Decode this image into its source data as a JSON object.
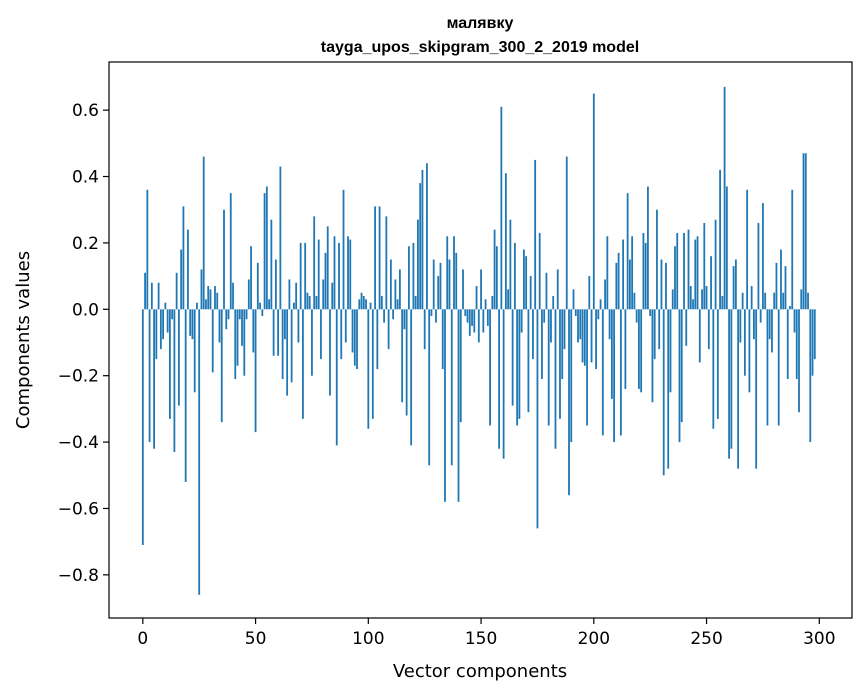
{
  "chart_data": {
    "type": "bar",
    "title": "малявку",
    "subtitle": "tayga_upos_skipgram_300_2_2019 model",
    "xlabel": "Vector components",
    "ylabel": "Components values",
    "xlim": [
      -15,
      314.5
    ],
    "ylim": [
      -0.93,
      0.745
    ],
    "x_ticks": [
      0,
      50,
      100,
      150,
      200,
      250,
      300
    ],
    "x_tick_labels": [
      "0",
      "50",
      "100",
      "150",
      "200",
      "250",
      "300"
    ],
    "y_ticks": [
      -0.8,
      -0.6,
      -0.4,
      -0.2,
      0.0,
      0.2,
      0.4,
      0.6
    ],
    "y_tick_labels": [
      "−0.8",
      "−0.6",
      "−0.4",
      "−0.2",
      "0.0",
      "0.2",
      "0.4",
      "0.6"
    ],
    "grid": false,
    "bar_color": "#1f77b4",
    "values": [
      -0.71,
      0.11,
      0.36,
      -0.4,
      0.08,
      -0.42,
      -0.15,
      0.08,
      -0.12,
      -0.09,
      0.02,
      -0.07,
      -0.33,
      -0.03,
      -0.43,
      0.11,
      -0.29,
      0.18,
      0.31,
      -0.52,
      0.24,
      -0.08,
      -0.09,
      -0.25,
      0.02,
      -0.86,
      0.12,
      0.46,
      0.03,
      0.07,
      0.06,
      -0.19,
      0.07,
      0.05,
      -0.1,
      -0.34,
      0.3,
      -0.06,
      -0.03,
      0.35,
      0.08,
      -0.21,
      -0.17,
      -0.03,
      -0.11,
      -0.2,
      -0.03,
      0.09,
      0.19,
      -0.13,
      -0.37,
      0.14,
      0.02,
      -0.02,
      0.35,
      0.37,
      0.03,
      0.27,
      -0.14,
      0.15,
      -0.14,
      0.43,
      -0.21,
      -0.09,
      -0.26,
      0.09,
      -0.22,
      0.02,
      0.08,
      -0.1,
      0.2,
      -0.33,
      0.2,
      0.05,
      0.04,
      -0.2,
      0.28,
      0.04,
      0.21,
      -0.15,
      0.09,
      0.17,
      0.25,
      -0.26,
      0.08,
      0.22,
      -0.41,
      0.2,
      -0.15,
      0.36,
      -0.1,
      0.22,
      0.21,
      -0.13,
      -0.17,
      -0.18,
      0.03,
      0.05,
      0.04,
      0.03,
      -0.36,
      0.02,
      -0.33,
      0.31,
      -0.18,
      0.31,
      0.04,
      -0.04,
      0.28,
      -0.12,
      0.15,
      -0.03,
      0.09,
      0.03,
      0.12,
      -0.28,
      -0.06,
      -0.32,
      0.19,
      -0.41,
      0.2,
      0.04,
      0.27,
      0.38,
      0.42,
      -0.12,
      0.44,
      -0.47,
      -0.02,
      0.15,
      -0.04,
      0.1,
      0.14,
      -0.18,
      -0.58,
      0.22,
      0.15,
      -0.47,
      0.22,
      0.17,
      -0.58,
      -0.34,
      0.12,
      -0.02,
      -0.04,
      -0.08,
      -0.05,
      -0.07,
      0.07,
      -0.1,
      0.12,
      -0.07,
      0.03,
      -0.05,
      -0.35,
      0.04,
      0.24,
      0.19,
      -0.42,
      0.61,
      -0.45,
      0.41,
      0.06,
      0.27,
      -0.29,
      0.2,
      -0.35,
      -0.33,
      -0.07,
      0.18,
      0.16,
      -0.31,
      0.1,
      -0.15,
      0.45,
      -0.66,
      0.23,
      -0.21,
      -0.04,
      0.11,
      -0.35,
      -0.1,
      0.04,
      -0.42,
      0.12,
      -0.33,
      -0.21,
      -0.12,
      0.46,
      -0.56,
      -0.4,
      0.06,
      -0.02,
      -0.1,
      -0.09,
      -0.16,
      -0.17,
      -0.35,
      0.1,
      -0.16,
      0.65,
      -0.18,
      -0.03,
      0.03,
      -0.38,
      0.09,
      0.22,
      -0.09,
      -0.27,
      -0.4,
      0.14,
      0.17,
      -0.38,
      0.21,
      -0.24,
      0.35,
      0.15,
      0.22,
      0.05,
      -0.04,
      -0.24,
      -0.25,
      0.23,
      0.2,
      0.37,
      -0.02,
      -0.28,
      -0.15,
      0.3,
      -0.12,
      0.15,
      -0.5,
      0.14,
      -0.48,
      -0.25,
      0.06,
      0.19,
      0.23,
      -0.4,
      -0.34,
      0.23,
      -0.11,
      0.24,
      0.07,
      0.03,
      0.21,
      0.22,
      -0.16,
      0.06,
      0.26,
      0.07,
      -0.12,
      0.16,
      -0.36,
      0.27,
      -0.33,
      0.42,
      0.04,
      0.67,
      0.37,
      -0.45,
      -0.42,
      0.13,
      0.15,
      -0.48,
      -0.1,
      0.05,
      -0.2,
      0.36,
      -0.25,
      0.07,
      -0.09,
      -0.48,
      0.26,
      -0.04,
      0.32,
      0.05,
      -0.35,
      -0.09,
      -0.13,
      0.05,
      0.14,
      -0.35,
      0.18,
      0.05,
      0.13,
      -0.21,
      0.01,
      0.36,
      -0.07,
      -0.21,
      -0.31,
      0.06,
      0.47,
      0.47,
      0.05,
      -0.4,
      -0.2,
      -0.15
    ]
  }
}
